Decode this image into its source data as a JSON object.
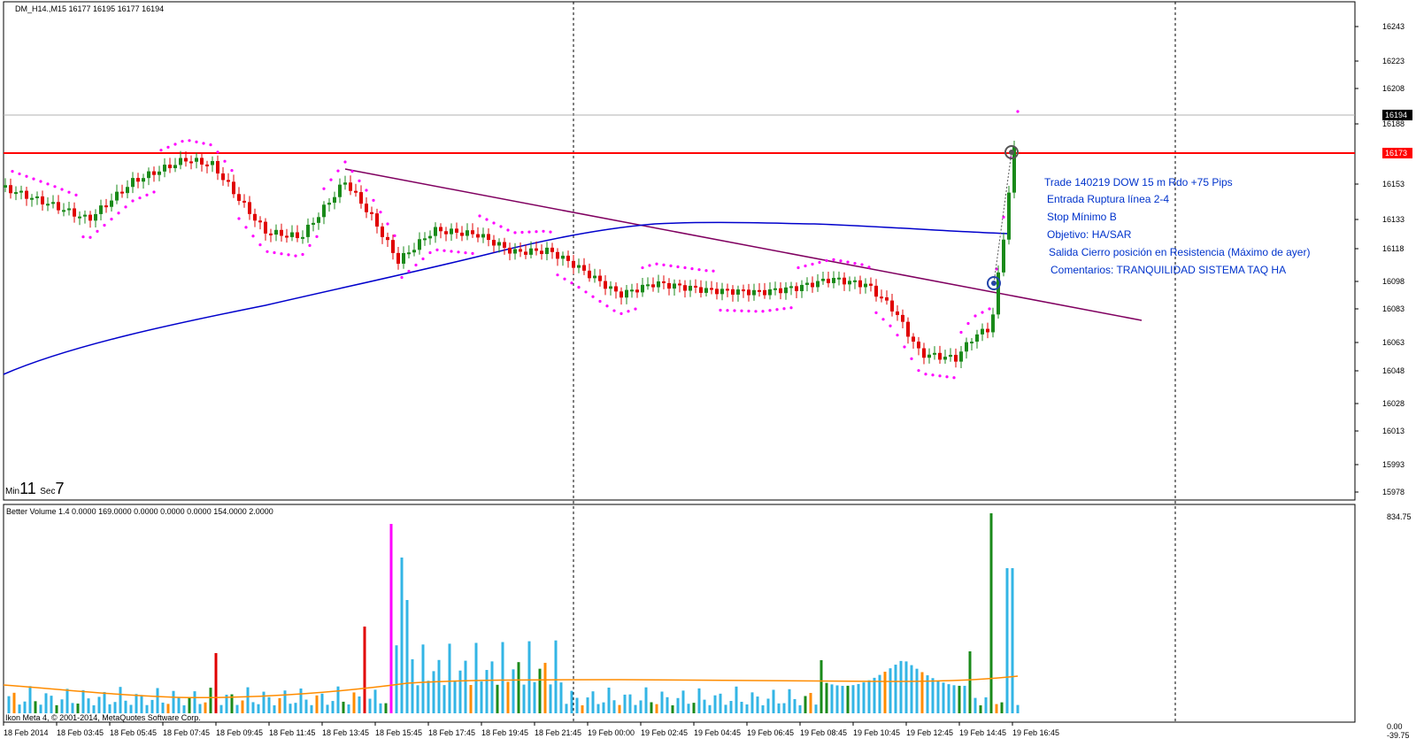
{
  "header": {
    "symbol_line": "DM_H14.,M15  16177 16195 16177 16194"
  },
  "timer": {
    "min_label": "Min",
    "min_value": "11",
    "sec_label": "Sec",
    "sec_value": "7"
  },
  "indicator": {
    "title": "Better Volume 1.4 0.0000 169.0000 0.0000 0.0000 0.0000 154.0000 2.0000",
    "scale_top": "834.75",
    "scale_bottom_a": "0.00",
    "scale_bottom_b": "-39.75"
  },
  "copyright": "Ikon Meta 4, © 2001-2014, MetaQuotes Software Corp.",
  "price_axis": {
    "ticks": [
      "16243",
      "16223",
      "16208",
      "16188",
      "16153",
      "16133",
      "16118",
      "16098",
      "16083",
      "16063",
      "16048",
      "16028",
      "16013",
      "15993",
      "15978"
    ],
    "current_price": "16194",
    "resistance_price": "16173"
  },
  "time_axis": [
    "18 Feb 2014",
    "18 Feb 03:45",
    "18 Feb 05:45",
    "18 Feb 07:45",
    "18 Feb 09:45",
    "18 Feb 11:45",
    "18 Feb 13:45",
    "18 Feb 15:45",
    "18 Feb 17:45",
    "18 Feb 19:45",
    "18 Feb 21:45",
    "19 Feb 00:00",
    "19 Feb 02:45",
    "19 Feb 04:45",
    "19 Feb 06:45",
    "19 Feb 08:45",
    "19 Feb 10:45",
    "19 Feb 12:45",
    "19 Feb 14:45",
    "19 Feb 16:45"
  ],
  "annotations": [
    "Trade 140219 DOW 15 m Rdo +75 Pips",
    "Entrada Ruptura línea 2-4",
    "Stop Mínimo B",
    "Objetivo: HA/SAR",
    "Salida Cierro posición en Resistencia (Máximo de ayer)",
    "Comentarios: TRANQUILIDAD SISTEMA TAQ HA"
  ],
  "colors": {
    "bull": "#1a8a1a",
    "bear": "#e00000",
    "sar": "#ff00ff",
    "ma": "#0000cc",
    "trendline": "#800060",
    "resistance": "#ff0000",
    "vol_default": "#33b5e5",
    "vol_avg": "#ff8c00",
    "annotation": "#0033cc"
  }
}
